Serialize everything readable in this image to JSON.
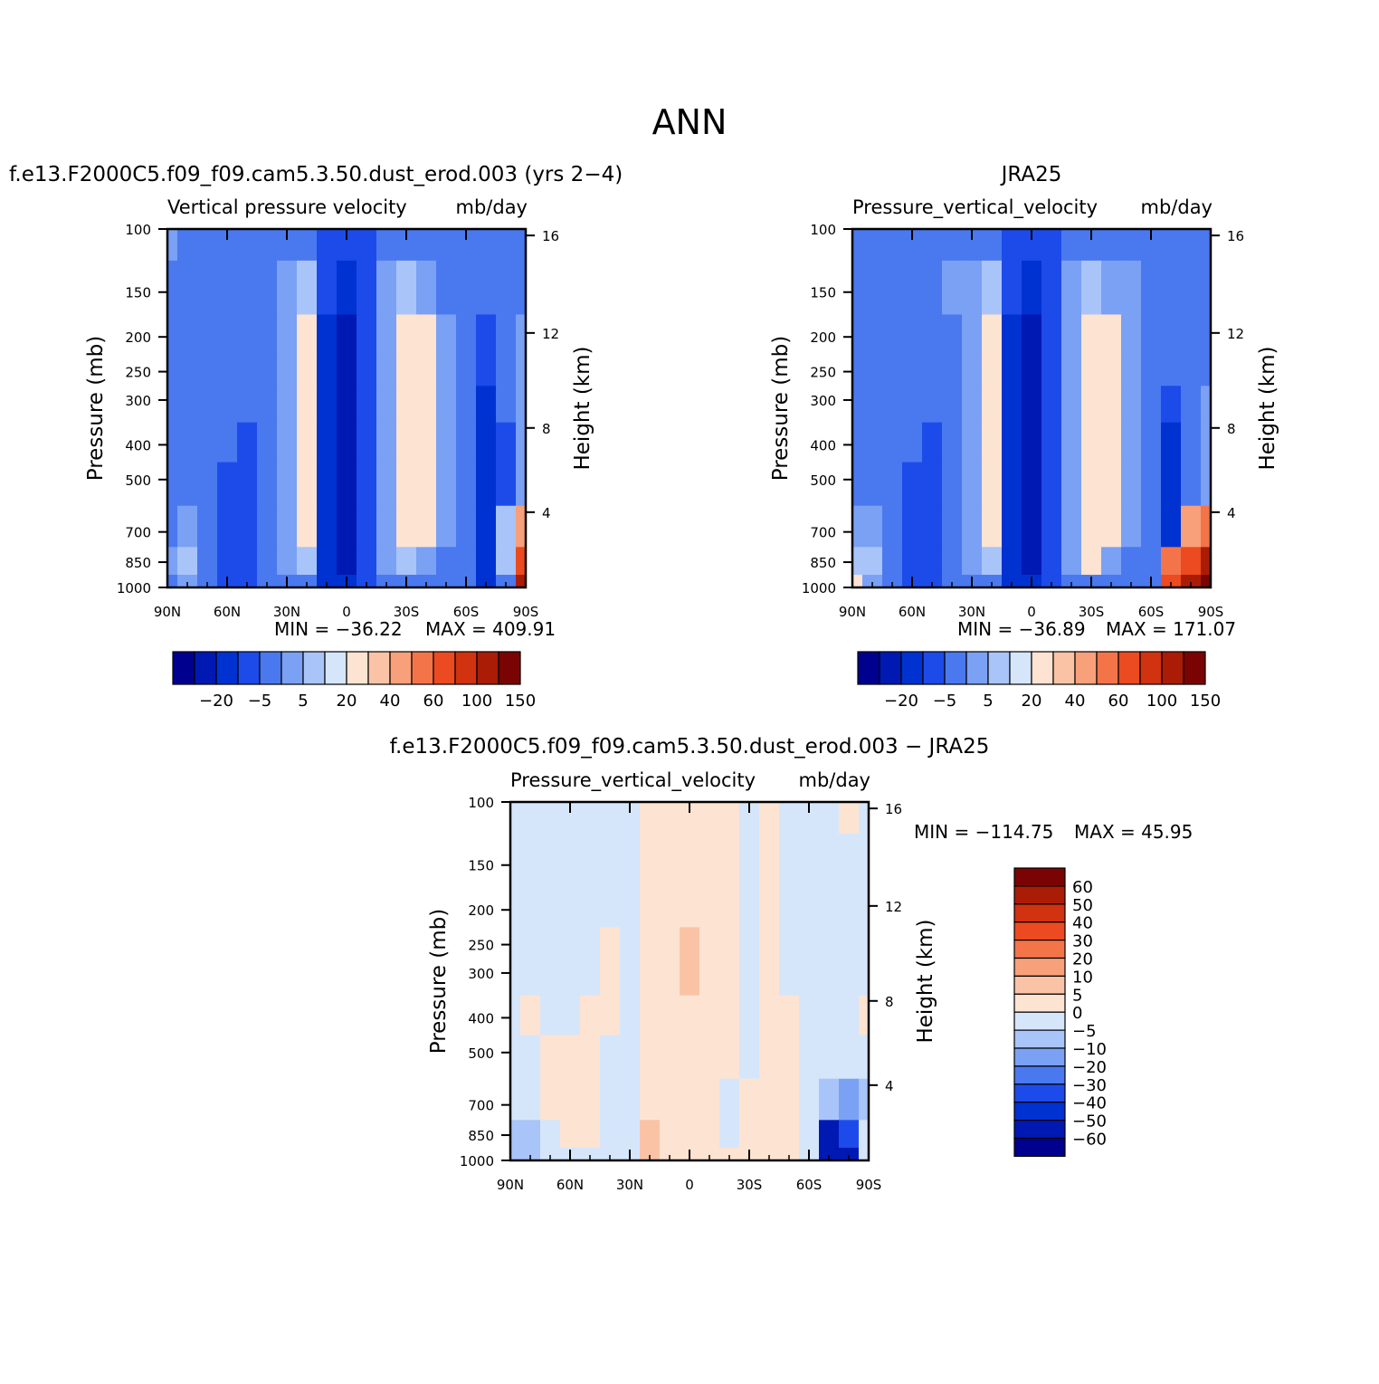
{
  "figure": {
    "title": "ANN"
  },
  "chart_data": [
    {
      "type": "heatmap",
      "title": "f.e13.F2000C5.f09_f09.cam5.3.50.dust_erod.003 (yrs 2−4)",
      "subtitle_left": "Vertical pressure velocity",
      "subtitle_right": "mb/day",
      "xlabel": "",
      "ylabel": "Pressure (mb)",
      "y2label": "Height (km)",
      "x_ticks": [
        "90N",
        "60N",
        "30N",
        "0",
        "30S",
        "60S",
        "90S"
      ],
      "y_ticks": [
        "100",
        "150",
        "200",
        "250",
        "300",
        "400",
        "500",
        "700",
        "850",
        "1000"
      ],
      "y2_ticks": [
        "16",
        "12",
        "8",
        "4"
      ],
      "ylim": [
        1000,
        100
      ],
      "y_scale": "log",
      "min_label": "MIN = −36.22",
      "max_label": "MAX = 409.91",
      "stats": {
        "min": -36.22,
        "max": 409.91
      },
      "colorbar_labels": [
        "−20",
        "−5",
        "5",
        "20",
        "40",
        "60",
        "100",
        "150"
      ],
      "legend_position": "bottom",
      "field": {
        "lat": [
          90,
          80,
          70,
          60,
          50,
          40,
          30,
          20,
          10,
          0,
          -10,
          -20,
          -30,
          -40,
          -50,
          -60,
          -70,
          -80,
          -90
        ],
        "pressure": [
          100,
          150,
          200,
          250,
          300,
          400,
          500,
          700,
          850,
          1000
        ],
        "value_bins": [
          [
            -10,
            -20,
            -20,
            -20,
            -20,
            -20,
            -20,
            -20,
            -30,
            -30,
            -30,
            -20,
            -20,
            -20,
            -20,
            -20,
            -20,
            -20,
            -20
          ],
          [
            -20,
            -20,
            -20,
            -20,
            -20,
            -20,
            -10,
            -5,
            -30,
            -40,
            -30,
            -10,
            -5,
            -10,
            -20,
            -20,
            -20,
            -20,
            -20
          ],
          [
            -20,
            -20,
            -20,
            -20,
            -20,
            -20,
            -10,
            5,
            -40,
            -50,
            -30,
            -10,
            5,
            5,
            -10,
            -20,
            -30,
            -20,
            -10
          ],
          [
            -20,
            -20,
            -20,
            -20,
            -20,
            -20,
            -10,
            5,
            -40,
            -50,
            -30,
            -10,
            5,
            5,
            -10,
            -20,
            -30,
            -20,
            -10
          ],
          [
            -20,
            -20,
            -20,
            -20,
            -20,
            -20,
            -10,
            5,
            -40,
            -50,
            -30,
            -10,
            5,
            5,
            -10,
            -20,
            -40,
            -20,
            -10
          ],
          [
            -20,
            -20,
            -20,
            -20,
            -30,
            -20,
            -10,
            5,
            -40,
            -50,
            -30,
            -10,
            5,
            5,
            -10,
            -20,
            -40,
            -30,
            -10
          ],
          [
            -20,
            -20,
            -20,
            -30,
            -30,
            -20,
            -10,
            5,
            -40,
            -50,
            -30,
            -10,
            5,
            5,
            -10,
            -20,
            -40,
            -30,
            -10
          ],
          [
            -20,
            -10,
            -20,
            -30,
            -30,
            -20,
            -10,
            5,
            -40,
            -50,
            -30,
            -10,
            5,
            5,
            -10,
            -20,
            -40,
            -5,
            20
          ],
          [
            -10,
            -5,
            -20,
            -30,
            -30,
            -20,
            -10,
            -5,
            -40,
            -50,
            -30,
            -10,
            -5,
            -10,
            -20,
            -20,
            -40,
            -5,
            60
          ],
          [
            -20,
            -10,
            -20,
            -30,
            -30,
            -20,
            -20,
            -20,
            -40,
            -40,
            -30,
            -20,
            -20,
            -20,
            -20,
            -20,
            -40,
            -20,
            100
          ]
        ]
      }
    },
    {
      "type": "heatmap",
      "title": "JRA25",
      "subtitle_left": "Pressure_vertical_velocity",
      "subtitle_right": "mb/day",
      "xlabel": "",
      "ylabel": "Pressure (mb)",
      "y2label": "Height (km)",
      "x_ticks": [
        "90N",
        "60N",
        "30N",
        "0",
        "30S",
        "60S",
        "90S"
      ],
      "y_ticks": [
        "100",
        "150",
        "200",
        "250",
        "300",
        "400",
        "500",
        "700",
        "850",
        "1000"
      ],
      "y2_ticks": [
        "16",
        "12",
        "8",
        "4"
      ],
      "ylim": [
        1000,
        100
      ],
      "y_scale": "log",
      "min_label": "MIN = −36.89",
      "max_label": "MAX = 171.07",
      "stats": {
        "min": -36.89,
        "max": 171.07
      },
      "colorbar_labels": [
        "−20",
        "−5",
        "5",
        "20",
        "40",
        "60",
        "100",
        "150"
      ],
      "legend_position": "bottom",
      "field": {
        "lat": [
          90,
          80,
          70,
          60,
          50,
          40,
          30,
          20,
          10,
          0,
          -10,
          -20,
          -30,
          -40,
          -50,
          -60,
          -70,
          -80,
          -90
        ],
        "pressure": [
          100,
          150,
          200,
          250,
          300,
          400,
          500,
          700,
          850,
          1000
        ],
        "value_bins": [
          [
            -20,
            -20,
            -20,
            -20,
            -20,
            -20,
            -20,
            -20,
            -30,
            -30,
            -30,
            -20,
            -20,
            -20,
            -20,
            -20,
            -20,
            -20,
            -20
          ],
          [
            -20,
            -20,
            -20,
            -20,
            -20,
            -10,
            -10,
            -5,
            -30,
            -40,
            -30,
            -10,
            -5,
            -10,
            -10,
            -20,
            -20,
            -20,
            -20
          ],
          [
            -20,
            -20,
            -20,
            -20,
            -20,
            -20,
            -10,
            5,
            -40,
            -50,
            -30,
            -10,
            5,
            5,
            -10,
            -20,
            -20,
            -20,
            -20
          ],
          [
            -20,
            -20,
            -20,
            -20,
            -20,
            -20,
            -10,
            5,
            -40,
            -50,
            -30,
            -10,
            5,
            5,
            -10,
            -20,
            -20,
            -20,
            -20
          ],
          [
            -20,
            -20,
            -20,
            -20,
            -20,
            -20,
            -10,
            5,
            -40,
            -50,
            -30,
            -10,
            5,
            5,
            -10,
            -20,
            -30,
            -20,
            -10
          ],
          [
            -20,
            -20,
            -20,
            -20,
            -30,
            -20,
            -10,
            5,
            -40,
            -50,
            -30,
            -10,
            5,
            5,
            -10,
            -20,
            -40,
            -20,
            -10
          ],
          [
            -20,
            -20,
            -20,
            -30,
            -30,
            -20,
            -10,
            5,
            -40,
            -50,
            -30,
            -10,
            5,
            5,
            -10,
            -20,
            -40,
            -20,
            -10
          ],
          [
            -10,
            -10,
            -20,
            -30,
            -30,
            -20,
            -10,
            5,
            -40,
            -50,
            -30,
            -10,
            5,
            5,
            -10,
            -20,
            -40,
            20,
            40
          ],
          [
            -5,
            -5,
            -20,
            -30,
            -30,
            -20,
            -10,
            -5,
            -40,
            -50,
            -30,
            -10,
            5,
            -10,
            -20,
            -20,
            40,
            60,
            100
          ],
          [
            5,
            -10,
            -20,
            -30,
            -30,
            -20,
            -20,
            -20,
            -40,
            -40,
            -30,
            -20,
            -20,
            -20,
            -20,
            -20,
            60,
            100,
            150
          ]
        ]
      }
    },
    {
      "type": "heatmap",
      "title": "f.e13.F2000C5.f09_f09.cam5.3.50.dust_erod.003 − JRA25",
      "subtitle_left": "Pressure_vertical_velocity",
      "subtitle_right": "mb/day",
      "xlabel": "",
      "ylabel": "Pressure (mb)",
      "y2label": "Height (km)",
      "x_ticks": [
        "90N",
        "60N",
        "30N",
        "0",
        "30S",
        "60S",
        "90S"
      ],
      "y_ticks": [
        "100",
        "150",
        "200",
        "250",
        "300",
        "400",
        "500",
        "700",
        "850",
        "1000"
      ],
      "y2_ticks": [
        "16",
        "12",
        "8",
        "4"
      ],
      "ylim": [
        1000,
        100
      ],
      "y_scale": "log",
      "min_label": "MIN = −114.75",
      "max_label": "MAX =  45.95",
      "stats": {
        "min": -114.75,
        "max": 45.95
      },
      "colorbar_labels": [
        "60",
        "50",
        "40",
        "30",
        "20",
        "10",
        "5",
        "0",
        "−5",
        "−10",
        "−20",
        "−30",
        "−40",
        "−50",
        "−60"
      ],
      "legend_position": "right",
      "field": {
        "lat": [
          90,
          80,
          70,
          60,
          50,
          40,
          30,
          20,
          10,
          0,
          -10,
          -20,
          -30,
          -40,
          -50,
          -60,
          -70,
          -80,
          -90
        ],
        "pressure": [
          100,
          150,
          200,
          250,
          300,
          400,
          500,
          700,
          850,
          1000
        ],
        "value_bins": [
          [
            -5,
            -5,
            -5,
            -5,
            -5,
            -5,
            -5,
            0,
            0,
            0,
            0,
            0,
            -5,
            0,
            -5,
            -5,
            -5,
            0,
            -5
          ],
          [
            -5,
            -5,
            -5,
            -5,
            -5,
            -5,
            -5,
            0,
            0,
            0,
            0,
            0,
            -5,
            0,
            -5,
            -5,
            -5,
            -5,
            -5
          ],
          [
            -5,
            -5,
            -5,
            -5,
            -5,
            -5,
            -5,
            0,
            0,
            0,
            0,
            0,
            -5,
            0,
            -5,
            -5,
            -5,
            -5,
            -5
          ],
          [
            -5,
            -5,
            -5,
            -5,
            -5,
            0,
            -5,
            0,
            0,
            5,
            0,
            0,
            -5,
            0,
            -5,
            -5,
            -5,
            -5,
            -5
          ],
          [
            -5,
            -5,
            -5,
            -5,
            -5,
            0,
            -5,
            0,
            0,
            5,
            0,
            0,
            -5,
            0,
            -5,
            -5,
            -5,
            -5,
            -5
          ],
          [
            -5,
            0,
            -5,
            -5,
            0,
            0,
            -5,
            0,
            0,
            0,
            0,
            0,
            -5,
            0,
            0,
            -5,
            -5,
            -5,
            0
          ],
          [
            -5,
            -5,
            0,
            0,
            0,
            -5,
            -5,
            0,
            0,
            0,
            0,
            0,
            -5,
            0,
            0,
            -5,
            -5,
            -5,
            -5
          ],
          [
            -5,
            -5,
            0,
            0,
            0,
            -5,
            -5,
            0,
            0,
            0,
            0,
            -5,
            0,
            0,
            0,
            -5,
            -10,
            -20,
            -10
          ],
          [
            -10,
            -10,
            -5,
            0,
            0,
            -5,
            -5,
            5,
            0,
            0,
            0,
            -5,
            0,
            0,
            0,
            -5,
            -60,
            -40,
            -5
          ],
          [
            -10,
            -10,
            -5,
            -5,
            -5,
            -5,
            -5,
            5,
            0,
            0,
            0,
            0,
            0,
            0,
            0,
            -5,
            -60,
            -60,
            -5
          ]
        ]
      }
    }
  ]
}
